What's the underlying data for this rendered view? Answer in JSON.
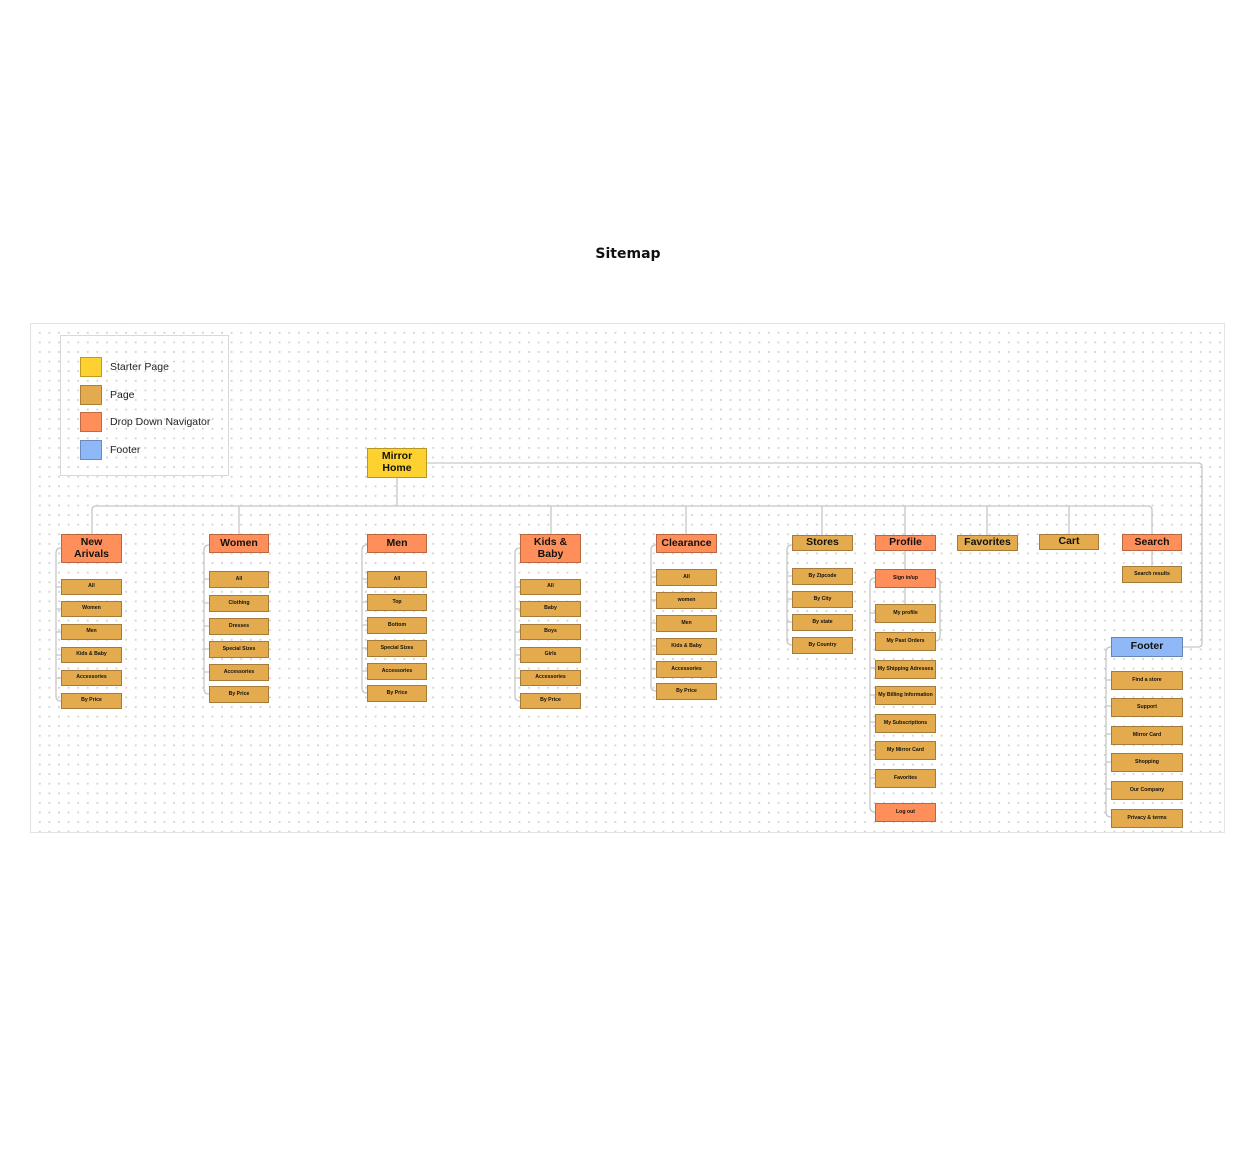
{
  "title": "Sitemap",
  "colors": {
    "starter": "#fdd130",
    "page": "#e4ab4e",
    "dropdown": "#ff8f5a",
    "footer": "#8fb8f7",
    "connector": "#c6c6c6"
  },
  "legend": [
    {
      "label": "Starter Page",
      "kind": "starter"
    },
    {
      "label": "Page",
      "kind": "page"
    },
    {
      "label": "Drop Down Navigator",
      "kind": "dropdown"
    },
    {
      "label": "Footer",
      "kind": "footer"
    }
  ],
  "root": {
    "label": "Mirror\nHome",
    "kind": "starter"
  },
  "categories": [
    {
      "label": "New\nArivals",
      "kind": "dropdown",
      "children": [
        "All",
        "Women",
        "Men",
        "Kids & Baby",
        "Accessories",
        "By Price"
      ]
    },
    {
      "label": "Women",
      "kind": "dropdown",
      "children": [
        "All",
        "Clothing",
        "Dresses",
        "Special Sizes",
        "Accessories",
        "By Price"
      ]
    },
    {
      "label": "Men",
      "kind": "dropdown",
      "children": [
        "All",
        "Top",
        "Bottom",
        "Special Sizes",
        "Accessories",
        "By Price"
      ]
    },
    {
      "label": "Kids &\nBaby",
      "kind": "dropdown",
      "children": [
        "All",
        "Baby",
        "Boys",
        "Girls",
        "Accessories",
        "By Price"
      ]
    },
    {
      "label": "Clearance",
      "kind": "dropdown",
      "children": [
        "All",
        "women",
        "Men",
        "Kids & Baby",
        "Accessories",
        "By Price"
      ]
    },
    {
      "label": "Stores",
      "kind": "page",
      "children": [
        "By Zipcode",
        "By City",
        "By state",
        "By Country"
      ]
    },
    {
      "label": "Profile",
      "kind": "dropdown",
      "children": [
        "Sign in/up"
      ],
      "subchildren": [
        "My profile",
        "My Past Orders",
        "My Shipping Adresses",
        "My Billing Information",
        "My Subscriptions",
        "My Mirror Card",
        "Favorites",
        "Log out"
      ]
    },
    {
      "label": "Favorites",
      "kind": "page",
      "children": []
    },
    {
      "label": "Cart",
      "kind": "page",
      "children": []
    },
    {
      "label": "Search",
      "kind": "dropdown",
      "children": [
        "Search results"
      ]
    }
  ],
  "footer": {
    "label": "Footer",
    "kind": "footer",
    "children": [
      "Find a store",
      "Support",
      "Mirror Card",
      "Shopping",
      "Our Company",
      "Privacy & terms"
    ]
  }
}
